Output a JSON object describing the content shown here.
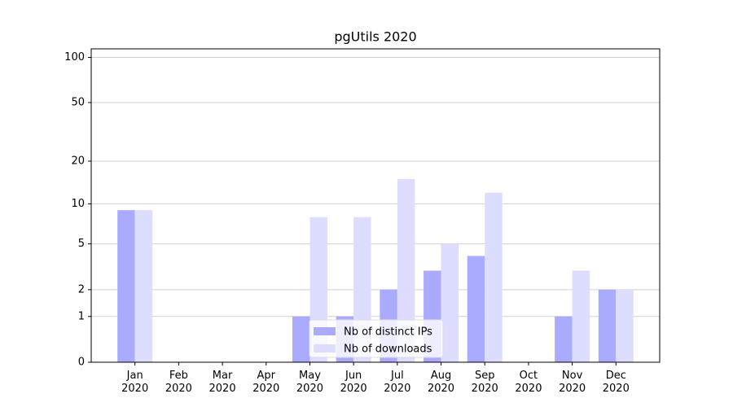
{
  "chart_data": {
    "type": "bar",
    "title": "pgUtils 2020",
    "categories": [
      "Jan\n2020",
      "Feb\n2020",
      "Mar\n2020",
      "Apr\n2020",
      "May\n2020",
      "Jun\n2020",
      "Jul\n2020",
      "Aug\n2020",
      "Sep\n2020",
      "Oct\n2020",
      "Nov\n2020",
      "Dec\n2020"
    ],
    "series": [
      {
        "name": "Nb of distinct IPs",
        "color": "#aaaaff",
        "values": [
          9,
          0,
          0,
          0,
          1,
          1,
          2,
          3,
          4,
          0,
          1,
          2
        ]
      },
      {
        "name": "Nb of downloads",
        "color": "#ddddff",
        "values": [
          9,
          0,
          0,
          0,
          8,
          8,
          15,
          5,
          12,
          0,
          3,
          2
        ]
      }
    ],
    "yscale": "log1p",
    "ylim": [
      0,
      114
    ],
    "yticks": [
      0,
      1,
      2,
      5,
      10,
      20,
      50,
      100
    ],
    "grid": true,
    "legend": "lower center"
  }
}
